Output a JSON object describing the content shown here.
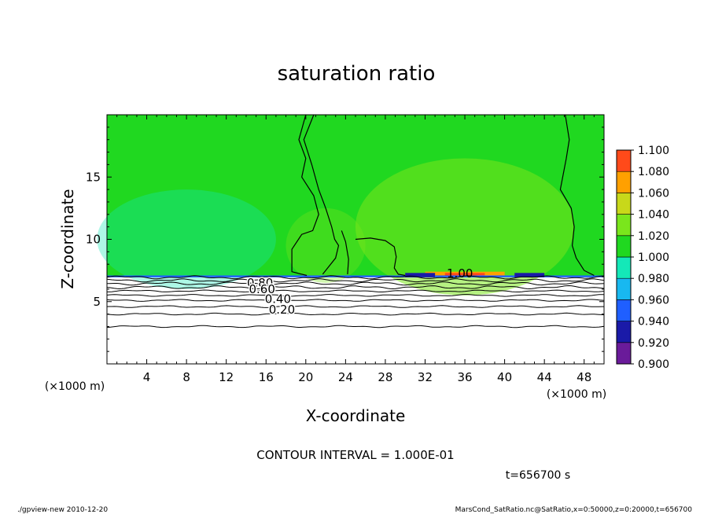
{
  "chart_data": {
    "type": "heatmap",
    "title": "saturation ratio",
    "xlabel": "X-coordinate",
    "ylabel": "Z-coordinate",
    "x_unit": "(×1000 m)",
    "z_unit": "(×1000 m)",
    "xlim": [
      0,
      50
    ],
    "zlim": [
      0,
      20
    ],
    "x_ticks": [
      4,
      8,
      12,
      16,
      20,
      24,
      28,
      32,
      36,
      40,
      44,
      48
    ],
    "z_ticks": [
      5,
      10,
      15
    ],
    "colorbar": {
      "levels": [
        0.9,
        0.92,
        0.94,
        0.96,
        0.98,
        1.0,
        1.02,
        1.04,
        1.06,
        1.08,
        1.1
      ],
      "labels": [
        "0.900",
        "0.920",
        "0.940",
        "0.960",
        "0.980",
        "1.000",
        "1.020",
        "1.040",
        "1.060",
        "1.080",
        "1.100"
      ],
      "colors": [
        "#6a1b9a",
        "#1a1aa8",
        "#1f5fff",
        "#18b8f0",
        "#14e8b8",
        "#20d820",
        "#7ae61c",
        "#c8d81a",
        "#ffa000",
        "#ff4a1a",
        "#ff8a8a"
      ]
    },
    "contour_labels": [
      "1.00",
      "0.80",
      "0.60",
      "0.40",
      "0.20"
    ],
    "contour_interval_text": "CONTOUR INTERVAL = 1.000E-01",
    "time_text": "t=656700 s",
    "footer_left": "./gpview-new  2010-12-20",
    "footer_right": "MarsCond_SatRatio.nc@SatRatio,x=0:50000,z=0:20000,t=656700"
  }
}
